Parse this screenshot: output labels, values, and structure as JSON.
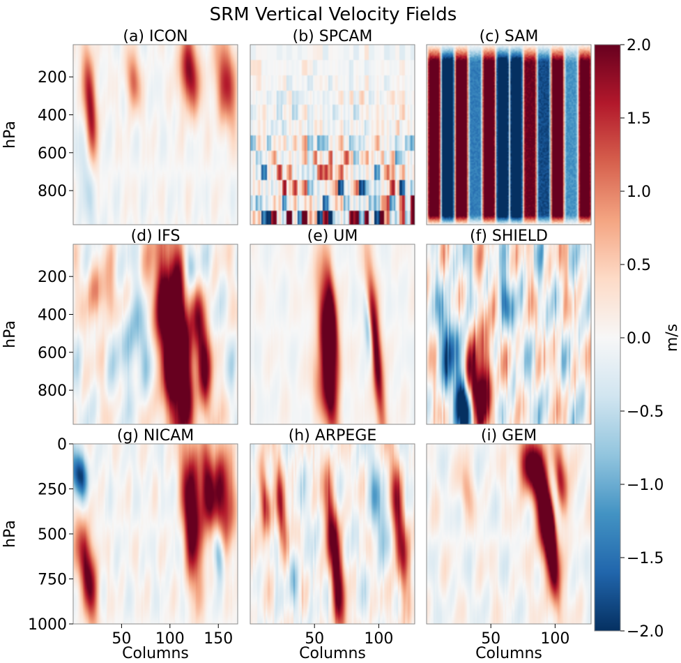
{
  "chart_data": {
    "type": "heatmap",
    "title": "SRM Vertical Velocity Fields",
    "colorbar": {
      "label": "m/s",
      "colormap": "RdBu_r",
      "range": [
        -2.0,
        2.0
      ],
      "ticks": [
        "2.0",
        "1.5",
        "1.0",
        "0.5",
        "0.0",
        "−0.5",
        "−1.0",
        "−1.5",
        "−2.0"
      ],
      "tick_values": [
        2.0,
        1.5,
        1.0,
        0.5,
        0.0,
        -0.5,
        -1.0,
        -1.5,
        -2.0
      ]
    },
    "colors": {
      "negative": "#053061",
      "neutral": "#f7f7f7",
      "positive": "#67001f",
      "frame": "#8a8a8a"
    },
    "panels": [
      {
        "title": "(a) ICON",
        "xlabel": "",
        "ylabel": "hPa",
        "xlim": [
          0,
          170
        ],
        "ylim": [
          980,
          30
        ],
        "yticks": [
          "200",
          "400",
          "600",
          "800"
        ],
        "ytick_values": [
          200,
          400,
          600,
          800
        ],
        "xticks": [],
        "xtick_values": [],
        "seed": 11,
        "background_amp": 0.15,
        "streaks": 0.06,
        "features": [
          [
            18,
            380,
            5,
            230,
            1.9
          ],
          [
            62,
            220,
            5,
            110,
            1.2
          ],
          [
            120,
            180,
            7,
            140,
            1.9
          ],
          [
            158,
            230,
            8,
            170,
            1.5
          ],
          [
            18,
            700,
            8,
            220,
            -0.6
          ]
        ]
      },
      {
        "title": "(b) SPCAM",
        "xlabel": "",
        "ylabel": "",
        "xlim": [
          0,
          32
        ],
        "ylim": [
          980,
          30
        ],
        "yticks": [],
        "ytick_values": [],
        "xticks": [],
        "xtick_values": [],
        "seed": 23,
        "background_amp": 0.15,
        "streaks": 0,
        "blocky": true,
        "features": []
      },
      {
        "title": "(c) SAM",
        "xlabel": "",
        "ylabel": "",
        "xlim": [
          0,
          128
        ],
        "ylim": [
          980,
          30
        ],
        "yticks": [],
        "ytick_values": [],
        "xticks": [],
        "xtick_values": [],
        "seed": 7,
        "background_amp": 0.1,
        "streaks": 0,
        "columns_pattern": [
          2.2,
          -2.4,
          2.2,
          -1.4,
          2.2,
          -2.5,
          -2.5,
          2.0,
          -1.8,
          2.2,
          -1.2,
          2.2
        ],
        "features": []
      },
      {
        "title": "(d) IFS",
        "xlabel": "",
        "ylabel": "hPa",
        "xlim": [
          0,
          128
        ],
        "ylim": [
          980,
          30
        ],
        "yticks": [
          "200",
          "400",
          "600",
          "800"
        ],
        "ytick_values": [
          200,
          400,
          600,
          800
        ],
        "xticks": [],
        "xtick_values": [],
        "seed": 31,
        "background_amp": 0.4,
        "streaks": 0.1,
        "features": [
          [
            74,
            560,
            7,
            380,
            2.5
          ],
          [
            84,
            500,
            5,
            360,
            2.4
          ],
          [
            100,
            600,
            5,
            260,
            2.0
          ],
          [
            22,
            300,
            8,
            120,
            1.0
          ],
          [
            48,
            560,
            10,
            160,
            -0.8
          ],
          [
            92,
            150,
            4,
            100,
            -1.2
          ]
        ]
      },
      {
        "title": "(e) UM",
        "xlabel": "",
        "ylabel": "",
        "xlim": [
          0,
          128
        ],
        "ylim": [
          980,
          30
        ],
        "yticks": [],
        "ytick_values": [],
        "xticks": [],
        "xtick_values": [],
        "seed": 43,
        "background_amp": 0.12,
        "streaks": 0.05,
        "features": [
          [
            60,
            620,
            4,
            300,
            2.5
          ],
          [
            64,
            420,
            3,
            200,
            2.0
          ],
          [
            98,
            600,
            3,
            320,
            2.3
          ],
          [
            92,
            480,
            2,
            120,
            -1.2
          ],
          [
            55,
            800,
            6,
            120,
            0.8
          ]
        ]
      },
      {
        "title": "(f) SHIELD",
        "xlabel": "",
        "ylabel": "",
        "xlim": [
          0,
          128
        ],
        "ylim": [
          980,
          30
        ],
        "yticks": [],
        "ytick_values": [],
        "xticks": [],
        "xtick_values": [],
        "seed": 59,
        "background_amp": 0.65,
        "streaks": 0.5,
        "features": [
          [
            38,
            820,
            6,
            150,
            2.3
          ],
          [
            30,
            900,
            5,
            100,
            -2.5
          ],
          [
            20,
            600,
            6,
            200,
            -1.4
          ],
          [
            45,
            650,
            5,
            220,
            1.3
          ],
          [
            60,
            330,
            4,
            100,
            -1.2
          ]
        ]
      },
      {
        "title": "(g) NICAM",
        "xlabel": "Columns",
        "ylabel": "hPa",
        "xlim": [
          0,
          170
        ],
        "ylim": [
          1000,
          0
        ],
        "yticks": [
          "0",
          "250",
          "500",
          "750",
          "1000"
        ],
        "ytick_values": [
          0,
          250,
          500,
          750,
          1000
        ],
        "xticks": [
          "50",
          "100",
          "150"
        ],
        "xtick_values": [
          50,
          100,
          150
        ],
        "seed": 71,
        "background_amp": 0.2,
        "streaks": 0.08,
        "features": [
          [
            6,
            170,
            6,
            90,
            -2.0
          ],
          [
            18,
            800,
            5,
            160,
            1.7
          ],
          [
            10,
            600,
            7,
            150,
            1.2
          ],
          [
            120,
            420,
            5,
            300,
            1.9
          ],
          [
            128,
            320,
            6,
            240,
            1.6
          ],
          [
            140,
            260,
            5,
            180,
            1.6
          ],
          [
            155,
            280,
            8,
            200,
            2.0
          ],
          [
            150,
            600,
            4,
            100,
            -1.3
          ]
        ]
      },
      {
        "title": "(h) ARPEGE",
        "xlabel": "Columns",
        "ylabel": "",
        "xlim": [
          0,
          128
        ],
        "ylim": [
          1000,
          0
        ],
        "yticks": [],
        "ytick_values": [],
        "xticks": [
          "50",
          "100"
        ],
        "xtick_values": [
          50,
          100
        ],
        "seed": 83,
        "background_amp": 0.35,
        "streaks": 0.25,
        "features": [
          [
            12,
            320,
            3,
            140,
            1.7
          ],
          [
            26,
            500,
            3,
            260,
            1.8
          ],
          [
            66,
            650,
            4,
            330,
            2.2
          ],
          [
            116,
            500,
            4,
            300,
            1.8
          ],
          [
            30,
            700,
            4,
            150,
            -1.3
          ],
          [
            100,
            380,
            5,
            200,
            -0.9
          ]
        ]
      },
      {
        "title": "(i) GEM",
        "xlabel": "Columns",
        "ylabel": "",
        "xlim": [
          0,
          128
        ],
        "ylim": [
          1000,
          0
        ],
        "yticks": [],
        "ytick_values": [],
        "xticks": [
          "50",
          "100"
        ],
        "xtick_values": [
          50,
          100
        ],
        "seed": 97,
        "background_amp": 0.25,
        "streaks": 0.08,
        "features": [
          [
            80,
            120,
            6,
            110,
            2.2
          ],
          [
            92,
            400,
            5,
            220,
            2.5
          ],
          [
            98,
            600,
            3,
            250,
            2.0
          ],
          [
            104,
            200,
            4,
            160,
            1.9
          ],
          [
            30,
            250,
            4,
            100,
            0.7
          ],
          [
            100,
            300,
            3,
            120,
            -1.4
          ]
        ]
      }
    ]
  }
}
